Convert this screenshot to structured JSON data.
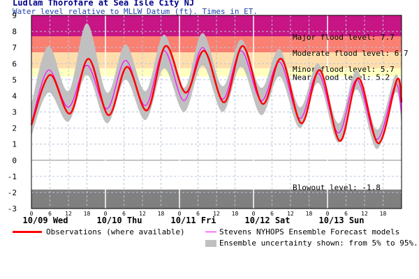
{
  "header": {
    "title": "Ludlam Thorofare at Sea Isle City NJ",
    "subtitle": "Water level relative to MLLW Datum (ft). Times in ET."
  },
  "colors": {
    "major": "#c71585",
    "moderate": "#fa8072",
    "minor": "#ffdead",
    "near": "#ffffc0",
    "blowout": "#808080",
    "observations": "#ff0000",
    "forecast": "#ff00ff",
    "ensemble": "#c0c0c0"
  },
  "chart_data": {
    "type": "line",
    "ylim": [
      -3,
      9
    ],
    "y_ticks": [
      "-3",
      "-2",
      "-1",
      "0",
      "1",
      "2",
      "3",
      "4",
      "5",
      "6",
      "7",
      "8",
      "9"
    ],
    "x_hour_ticks": [
      "0",
      "6",
      "12",
      "18",
      "0",
      "6",
      "12",
      "18",
      "0",
      "6",
      "12",
      "18",
      "0",
      "6",
      "12",
      "18",
      "0",
      "6",
      "12",
      "18"
    ],
    "x_day_labels": [
      "10/09 Wed",
      "10/10 Thu",
      "10/11 Fri",
      "10/12 Sat",
      "10/13 Sun"
    ],
    "x_range_hours": [
      0,
      120
    ],
    "thresholds": [
      {
        "name": "Major flood level: 7.7",
        "value": 7.7
      },
      {
        "name": "Moderate flood level: 6.7",
        "value": 6.7
      },
      {
        "name": "Minor flood level: 5.7",
        "value": 5.7
      },
      {
        "name": "Near flood level: 5.2",
        "value": 5.2
      },
      {
        "name": "Blowout level: -1.8",
        "value": -1.8
      }
    ],
    "series": [
      {
        "name": "Observations (where available)",
        "x": [
          0,
          6,
          12.5,
          18.5,
          25,
          31,
          37.5,
          43.5,
          50,
          56,
          62.5,
          68.5,
          75,
          81,
          87.5,
          93.5,
          100,
          106,
          112.5,
          118.5,
          120
        ],
        "y": [
          2.2,
          5.3,
          2.9,
          6.3,
          2.8,
          5.8,
          3.1,
          7.1,
          4.2,
          6.8,
          3.6,
          7.1,
          3.5,
          6.3,
          2.3,
          5.6,
          1.2,
          5.1,
          1.05,
          5.0,
          3.6
        ]
      },
      {
        "name": "Stevens NYHOPS Ensemble Forecast models",
        "x": [
          0,
          5.5,
          12,
          18,
          24.5,
          30.5,
          37,
          43,
          49.5,
          55.5,
          62,
          68,
          74.5,
          80.5,
          87,
          93,
          99.5,
          105.5,
          112,
          118,
          120
        ],
        "y": [
          2.3,
          5.6,
          3.3,
          5.9,
          3.2,
          6.2,
          3.4,
          6.8,
          3.7,
          7.0,
          3.8,
          6.8,
          3.7,
          6.1,
          2.6,
          5.4,
          1.7,
          5.0,
          1.3,
          4.7,
          2.9
        ]
      }
    ],
    "ensemble_band": {
      "name": "Ensemble uncertainty shown: from 5% to 95%.",
      "x": [
        0,
        5.5,
        12,
        18,
        24.5,
        30.5,
        37,
        43,
        49.5,
        55.5,
        62,
        68,
        74.5,
        80.5,
        87,
        93,
        99.5,
        105.5,
        112,
        118,
        120
      ],
      "low": [
        1.5,
        4.2,
        2.4,
        5.3,
        2.3,
        5.0,
        2.5,
        5.7,
        3.0,
        5.9,
        3.0,
        5.8,
        2.8,
        5.2,
        2.0,
        4.8,
        1.1,
        4.4,
        0.7,
        4.2,
        2.3
      ],
      "high": [
        3.5,
        7.1,
        4.3,
        8.5,
        4.2,
        7.2,
        4.3,
        7.8,
        4.5,
        7.9,
        4.6,
        7.5,
        4.5,
        6.9,
        3.3,
        6.0,
        2.3,
        5.6,
        1.9,
        5.3,
        3.6
      ]
    }
  },
  "legend": {
    "observations": "Observations (where available)",
    "forecast": "Stevens NYHOPS Ensemble Forecast models",
    "ensemble": "Ensemble uncertainty shown: from 5% to 95%."
  }
}
